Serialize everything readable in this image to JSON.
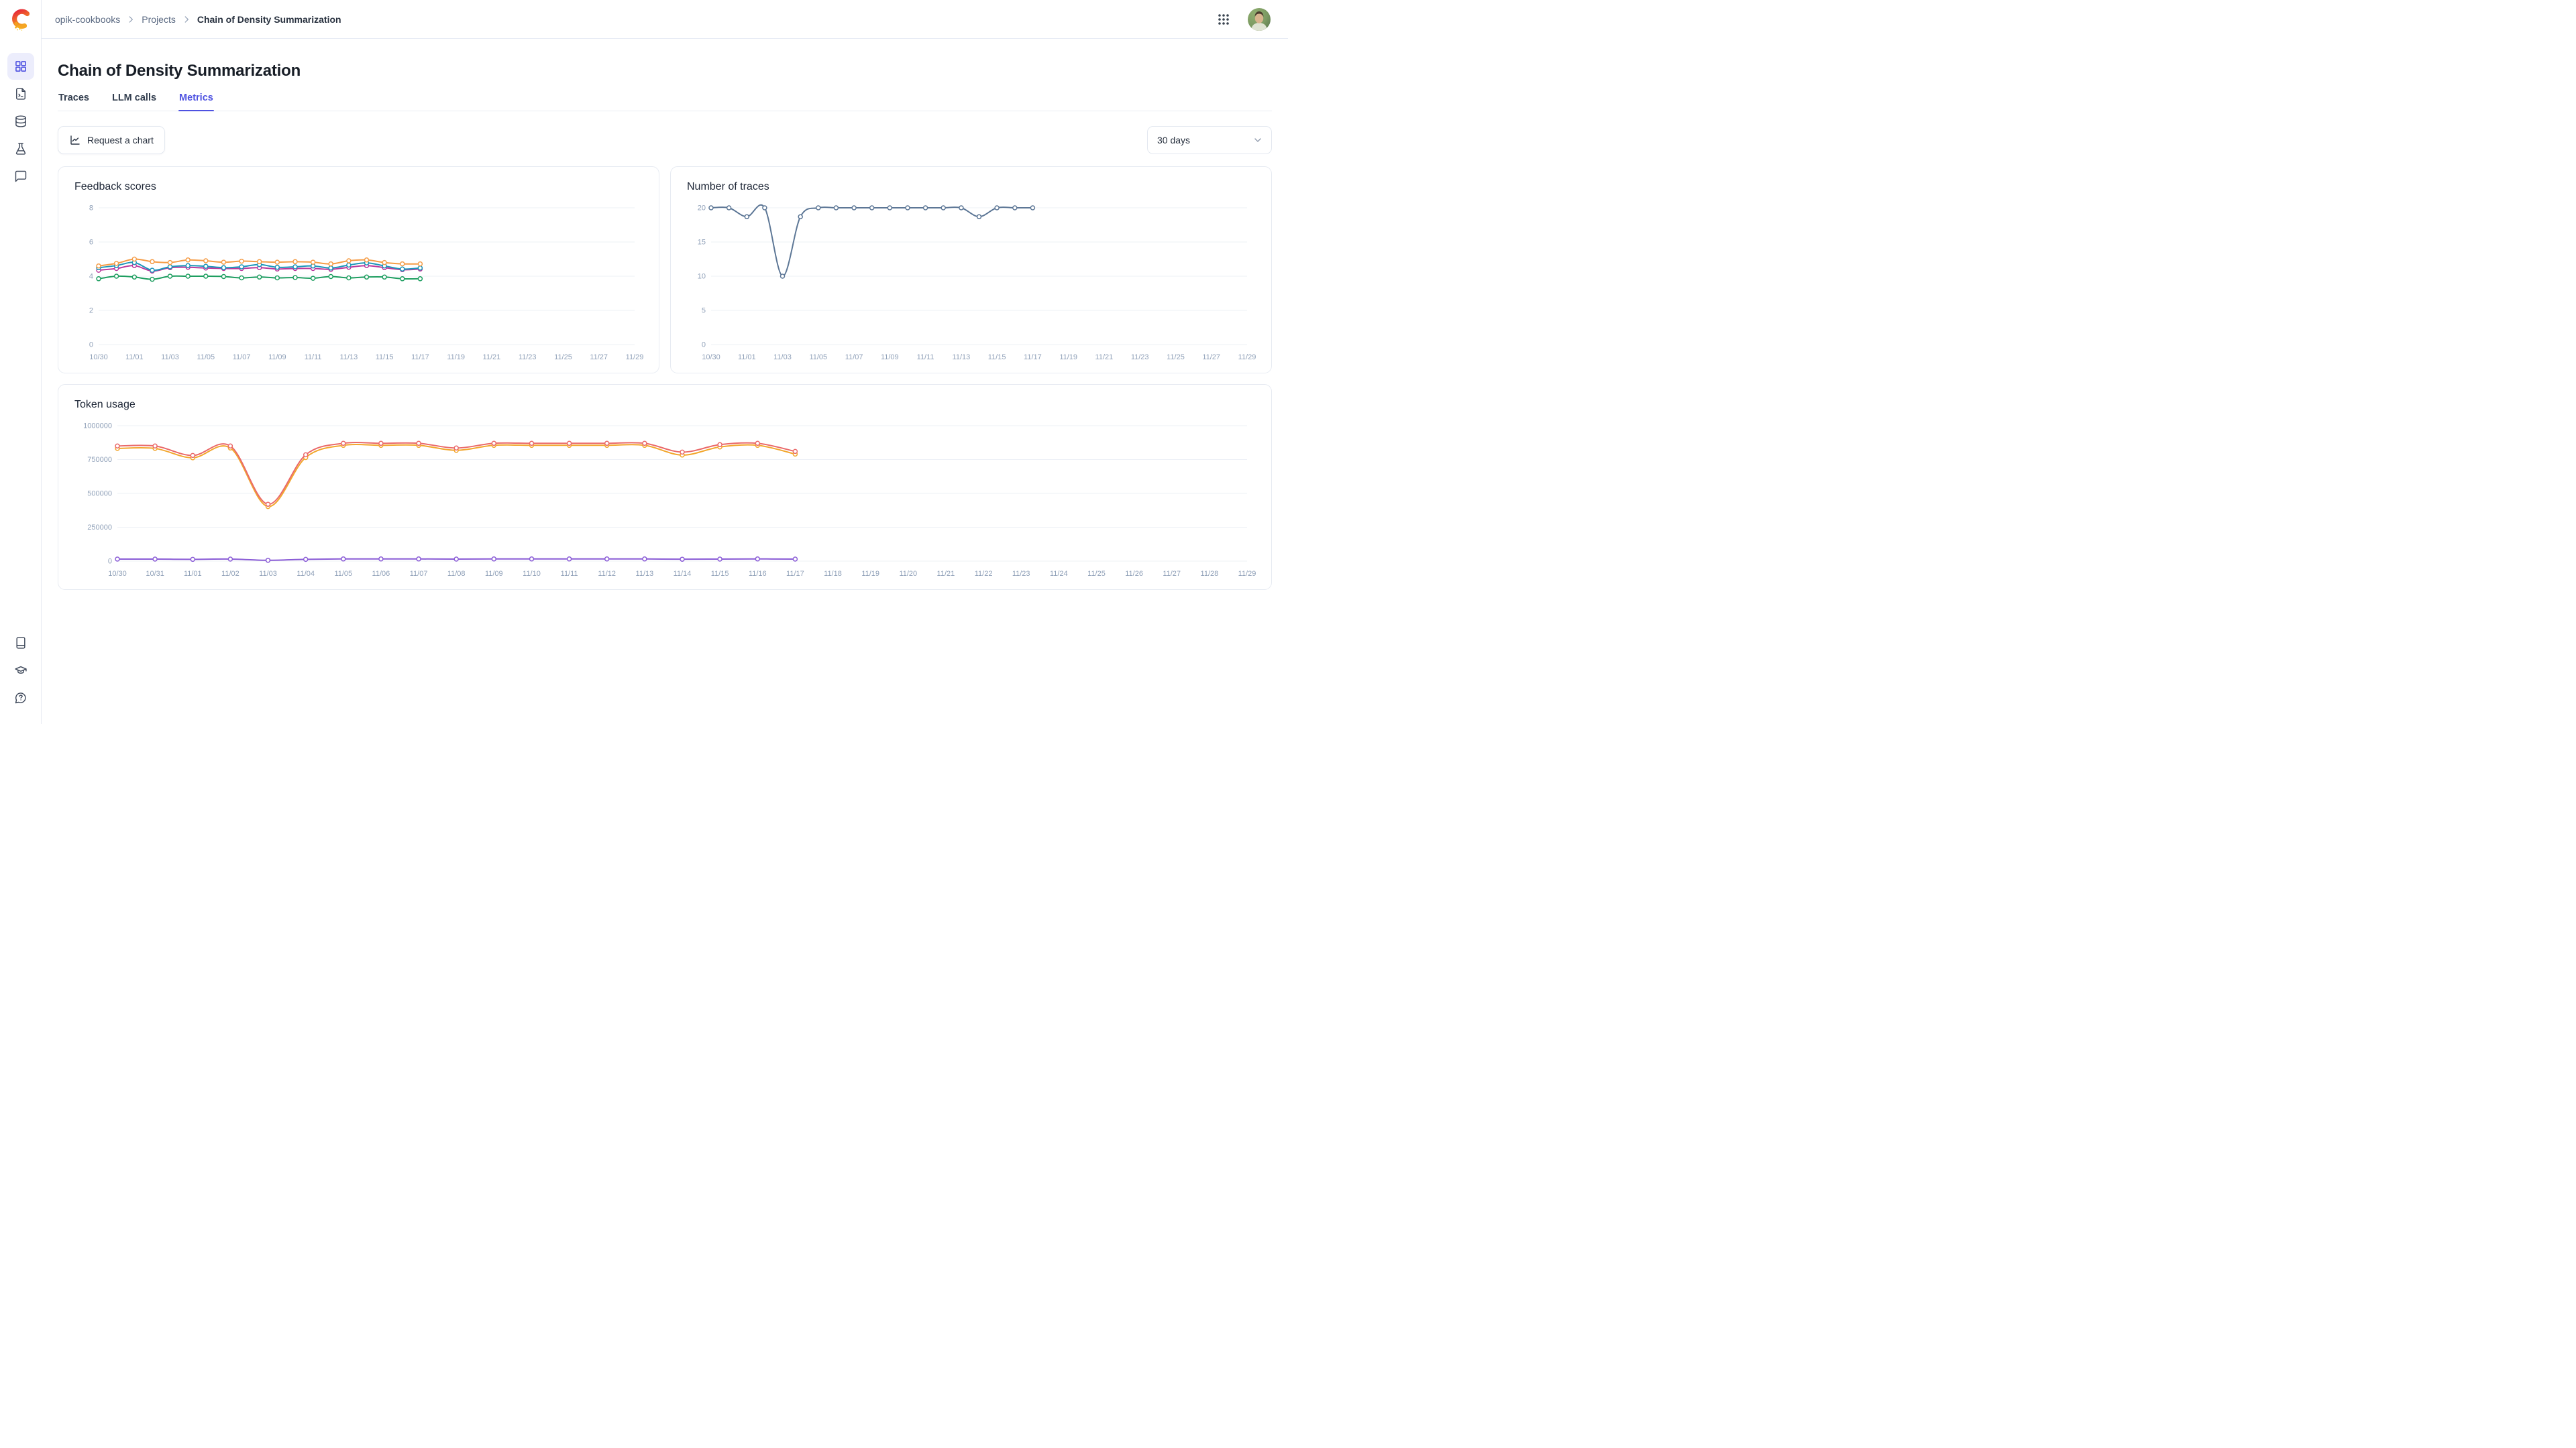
{
  "topbar": {
    "breadcrumb": [
      "opik-cookbooks",
      "Projects",
      "Chain of Density Summarization"
    ]
  },
  "sidebar": {
    "icons": [
      "grid-icon",
      "file-terminal-icon",
      "database-icon",
      "flask-icon",
      "message-icon",
      "book-icon",
      "graduation-cap-icon",
      "help-circle-icon"
    ]
  },
  "page": {
    "title": "Chain of Density Summarization",
    "tabs": [
      {
        "label": "Traces",
        "active": false
      },
      {
        "label": "LLM calls",
        "active": false
      },
      {
        "label": "Metrics",
        "active": true
      }
    ]
  },
  "toolbar": {
    "request_chart_label": "Request a chart",
    "range_value": "30 days"
  },
  "colors": {
    "accent": "#4e52e1",
    "grid": "#edf0f6",
    "axis_text": "#8fa0b8"
  },
  "chart_data": [
    {
      "type": "line",
      "title": "Feedback scores",
      "x": [
        "10/30",
        "10/31",
        "11/01",
        "11/02",
        "11/03",
        "11/04",
        "11/05",
        "11/06",
        "11/07",
        "11/08",
        "11/09",
        "11/10",
        "11/11",
        "11/12",
        "11/13",
        "11/14",
        "11/15",
        "11/16",
        "11/17",
        "11/18",
        "11/19",
        "11/20",
        "11/21",
        "11/22",
        "11/23",
        "11/24",
        "11/25",
        "11/26",
        "11/27",
        "11/28",
        "11/29"
      ],
      "tick_every": 2,
      "ylim": [
        0,
        8
      ],
      "yticks": [
        0,
        2,
        4,
        6,
        8
      ],
      "grid": true,
      "legend": "none",
      "series": [
        {
          "name": "green-series",
          "color": "#1e9e60",
          "values": [
            3.85,
            4.0,
            3.95,
            3.82,
            4.0,
            4.0,
            4.0,
            3.98,
            3.9,
            3.95,
            3.9,
            3.92,
            3.88,
            3.98,
            3.9,
            3.95,
            3.95,
            3.85,
            3.85
          ]
        },
        {
          "name": "magenta-series",
          "color": "#bb3a9e",
          "values": [
            4.35,
            4.45,
            4.62,
            4.3,
            4.5,
            4.52,
            4.48,
            4.45,
            4.45,
            4.5,
            4.42,
            4.45,
            4.45,
            4.4,
            4.52,
            4.62,
            4.5,
            4.38,
            4.42
          ]
        },
        {
          "name": "teal-series",
          "color": "#1d96ba",
          "values": [
            4.5,
            4.62,
            4.8,
            4.35,
            4.55,
            4.62,
            4.58,
            4.5,
            4.55,
            4.68,
            4.52,
            4.55,
            4.6,
            4.48,
            4.65,
            4.78,
            4.6,
            4.42,
            4.48
          ]
        },
        {
          "name": "orange-series",
          "color": "#f59c46",
          "values": [
            4.6,
            4.75,
            5.0,
            4.85,
            4.8,
            4.95,
            4.9,
            4.82,
            4.88,
            4.85,
            4.82,
            4.85,
            4.82,
            4.72,
            4.9,
            4.95,
            4.8,
            4.72,
            4.72
          ]
        }
      ]
    },
    {
      "type": "line",
      "title": "Number of traces",
      "x": [
        "10/30",
        "10/31",
        "11/01",
        "11/02",
        "11/03",
        "11/04",
        "11/05",
        "11/06",
        "11/07",
        "11/08",
        "11/09",
        "11/10",
        "11/11",
        "11/12",
        "11/13",
        "11/14",
        "11/15",
        "11/16",
        "11/17",
        "11/18",
        "11/19",
        "11/20",
        "11/21",
        "11/22",
        "11/23",
        "11/24",
        "11/25",
        "11/26",
        "11/27",
        "11/28",
        "11/29"
      ],
      "tick_every": 2,
      "ylim": [
        0,
        20
      ],
      "yticks": [
        0,
        5,
        10,
        15,
        20
      ],
      "grid": true,
      "legend": "none",
      "series": [
        {
          "name": "traces-series",
          "color": "#5d7796",
          "values": [
            20,
            20,
            18.7,
            20,
            10,
            18.7,
            20,
            20,
            20,
            20,
            20,
            20,
            20,
            20,
            20,
            18.7,
            20,
            20,
            20
          ]
        }
      ]
    },
    {
      "type": "line",
      "title": "Token usage",
      "x": [
        "10/30",
        "10/31",
        "11/01",
        "11/02",
        "11/03",
        "11/04",
        "11/05",
        "11/06",
        "11/07",
        "11/08",
        "11/09",
        "11/10",
        "11/11",
        "11/12",
        "11/13",
        "11/14",
        "11/15",
        "11/16",
        "11/17",
        "11/18",
        "11/19",
        "11/20",
        "11/21",
        "11/22",
        "11/23",
        "11/24",
        "11/25",
        "11/26",
        "11/27",
        "11/28",
        "11/29"
      ],
      "tick_every": 1,
      "ylim": [
        0,
        1000000
      ],
      "yticks": [
        0,
        250000,
        500000,
        750000,
        1000000
      ],
      "grid": true,
      "legend": "none",
      "series": [
        {
          "name": "purple-series",
          "color": "#8a5cd6",
          "values": [
            15000,
            15000,
            13000,
            15000,
            6000,
            13000,
            16000,
            16000,
            16000,
            15000,
            16000,
            16000,
            16000,
            16000,
            16000,
            14000,
            15000,
            16000,
            15000
          ]
        },
        {
          "name": "amber-series",
          "color": "#f2a72e",
          "values": [
            832000,
            832000,
            763000,
            835000,
            403000,
            765000,
            855000,
            855000,
            855000,
            818000,
            855000,
            855000,
            855000,
            855000,
            855000,
            783000,
            843000,
            855000,
            790000
          ]
        },
        {
          "name": "red-series",
          "color": "#ea6a6a",
          "values": [
            850000,
            850000,
            780000,
            850000,
            420000,
            785000,
            870000,
            870000,
            870000,
            835000,
            870000,
            870000,
            870000,
            870000,
            870000,
            805000,
            860000,
            870000,
            810000
          ]
        }
      ]
    }
  ]
}
